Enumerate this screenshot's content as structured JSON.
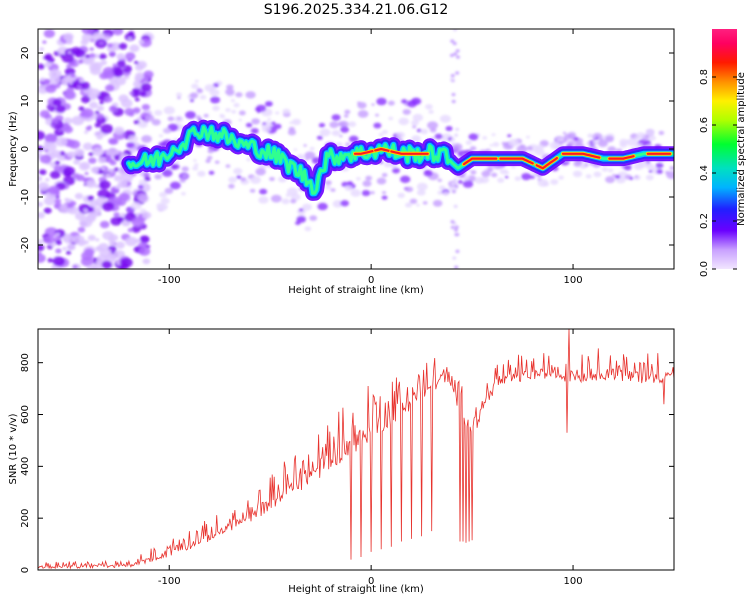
{
  "title": "S196.2025.334.21.06.G12",
  "colors": {
    "snr_line": "#e8332e",
    "frame": "#000000"
  },
  "chart_data": [
    {
      "type": "heatmap",
      "name": "periodogram",
      "xlabel": "Height of straight line (km)",
      "ylabel": "Frequency (Hz)",
      "xlim": [
        -165,
        150
      ],
      "ylim": [
        -25,
        25
      ],
      "xticks": [
        -100,
        0,
        100
      ],
      "yticks": [
        -20,
        -10,
        0,
        10,
        20
      ],
      "colorbar": {
        "label": "Normalized spectral amplitude",
        "range": [
          0,
          1
        ],
        "ticks": [
          0.0,
          0.2,
          0.4,
          0.6,
          0.8
        ],
        "colormap": "rainbow"
      },
      "ridge": [
        {
          "x": -115,
          "y": -3
        },
        {
          "x": -105,
          "y": -2
        },
        {
          "x": -95,
          "y": 1
        },
        {
          "x": -85,
          "y": 4
        },
        {
          "x": -75,
          "y": 3
        },
        {
          "x": -65,
          "y": 1
        },
        {
          "x": -55,
          "y": 0
        },
        {
          "x": -45,
          "y": -2
        },
        {
          "x": -35,
          "y": -5
        },
        {
          "x": -28,
          "y": -8
        },
        {
          "x": -22,
          "y": -2
        },
        {
          "x": -12,
          "y": -1
        },
        {
          "x": -5,
          "y": -1
        },
        {
          "x": 5,
          "y": 0
        },
        {
          "x": 15,
          "y": -1
        },
        {
          "x": 25,
          "y": -1
        },
        {
          "x": 35,
          "y": -1
        },
        {
          "x": 43,
          "y": -4
        },
        {
          "x": 50,
          "y": -2
        },
        {
          "x": 60,
          "y": -2
        },
        {
          "x": 75,
          "y": -2
        },
        {
          "x": 85,
          "y": -4
        },
        {
          "x": 95,
          "y": -1
        },
        {
          "x": 105,
          "y": -1
        },
        {
          "x": 115,
          "y": -2
        },
        {
          "x": 125,
          "y": -2
        },
        {
          "x": 135,
          "y": -1
        },
        {
          "x": 148,
          "y": -1
        }
      ]
    },
    {
      "type": "line",
      "name": "snr",
      "xlabel": "Height of straight line (km)",
      "ylabel": "SNR (10 * v/v)",
      "xlim": [
        -165,
        150
      ],
      "ylim": [
        0,
        930
      ],
      "xticks": [
        -100,
        0,
        100
      ],
      "yticks": [
        0,
        200,
        400,
        600,
        800
      ],
      "lower_envelope": [
        {
          "x": -165,
          "y": 5
        },
        {
          "x": -120,
          "y": 10
        },
        {
          "x": -110,
          "y": 30
        },
        {
          "x": -100,
          "y": 50
        },
        {
          "x": -90,
          "y": 80
        },
        {
          "x": -80,
          "y": 110
        },
        {
          "x": -70,
          "y": 150
        },
        {
          "x": -60,
          "y": 180
        },
        {
          "x": -50,
          "y": 230
        },
        {
          "x": -40,
          "y": 280
        },
        {
          "x": -30,
          "y": 330
        },
        {
          "x": -20,
          "y": 380
        },
        {
          "x": -10,
          "y": 440
        },
        {
          "x": 0,
          "y": 500
        },
        {
          "x": 10,
          "y": 560
        },
        {
          "x": 20,
          "y": 620
        },
        {
          "x": 30,
          "y": 680
        },
        {
          "x": 35,
          "y": 720
        },
        {
          "x": 40,
          "y": 700
        },
        {
          "x": 43,
          "y": 620
        },
        {
          "x": 46,
          "y": 560
        },
        {
          "x": 49,
          "y": 520
        },
        {
          "x": 53,
          "y": 550
        },
        {
          "x": 57,
          "y": 640
        },
        {
          "x": 62,
          "y": 690
        },
        {
          "x": 70,
          "y": 720
        },
        {
          "x": 85,
          "y": 740
        },
        {
          "x": 100,
          "y": 720
        },
        {
          "x": 115,
          "y": 735
        },
        {
          "x": 130,
          "y": 720
        },
        {
          "x": 150,
          "y": 725
        }
      ],
      "spike_tops": [
        {
          "x": -165,
          "y": 30
        },
        {
          "x": -120,
          "y": 40
        },
        {
          "x": -100,
          "y": 120
        },
        {
          "x": -80,
          "y": 200
        },
        {
          "x": -60,
          "y": 280
        },
        {
          "x": -40,
          "y": 450
        },
        {
          "x": -20,
          "y": 620
        },
        {
          "x": 0,
          "y": 720
        },
        {
          "x": 20,
          "y": 800
        },
        {
          "x": 35,
          "y": 830
        },
        {
          "x": 40,
          "y": 760
        },
        {
          "x": 47,
          "y": 700
        },
        {
          "x": 55,
          "y": 700
        },
        {
          "x": 60,
          "y": 820
        },
        {
          "x": 100,
          "y": 860
        },
        {
          "x": 150,
          "y": 850
        }
      ],
      "dropouts": [
        {
          "x": -10,
          "y": 40
        },
        {
          "x": -5,
          "y": 50
        },
        {
          "x": 0,
          "y": 70
        },
        {
          "x": 5,
          "y": 80
        },
        {
          "x": 10,
          "y": 90
        },
        {
          "x": 15,
          "y": 110
        },
        {
          "x": 20,
          "y": 120
        },
        {
          "x": 25,
          "y": 130
        },
        {
          "x": 30,
          "y": 150
        },
        {
          "x": 44,
          "y": 110
        },
        {
          "x": 45.5,
          "y": 110
        },
        {
          "x": 47,
          "y": 105
        },
        {
          "x": 48.5,
          "y": 110
        },
        {
          "x": 50,
          "y": 115
        },
        {
          "x": 97,
          "y": 530
        },
        {
          "x": 145,
          "y": 640
        }
      ],
      "peak": {
        "x": 98,
        "y": 930
      }
    }
  ]
}
